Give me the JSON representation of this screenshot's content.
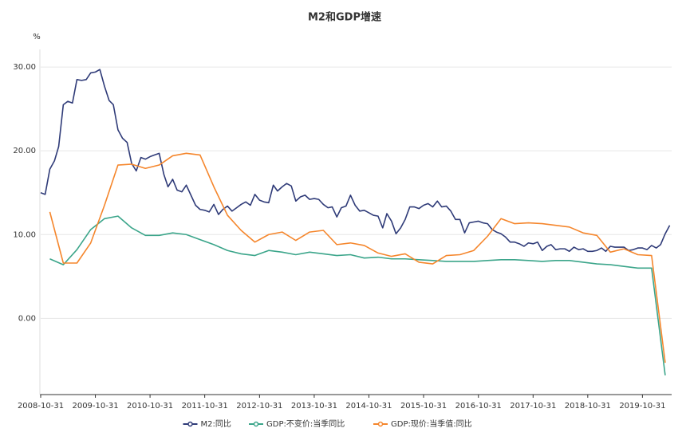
{
  "chart_data": {
    "type": "line",
    "title": "M2和GDP增速",
    "y_unit": "%",
    "ylim": [
      -9.1,
      32.1
    ],
    "yticks": [
      {
        "value": 0,
        "label": "0.00"
      },
      {
        "value": 10,
        "label": "10.00"
      },
      {
        "value": 20,
        "label": "20.00"
      },
      {
        "value": 30,
        "label": "30.00"
      }
    ],
    "xlim": [
      "2008-10-31",
      "2020-05-13"
    ],
    "xticks": [
      "2008-10-31",
      "2009-10-31",
      "2010-10-31",
      "2011-10-31",
      "2012-10-31",
      "2013-10-31",
      "2014-10-31",
      "2015-10-31",
      "2016-10-31",
      "2017-10-31",
      "2018-10-31",
      "2019-10-31"
    ],
    "grid": true,
    "legend": "bottom",
    "series": [
      {
        "name": "M2:同比",
        "color": "#2f3b78",
        "x": [
          "2008-10-31",
          "2008-11-30",
          "2008-12-31",
          "2009-01-31",
          "2009-02-28",
          "2009-03-31",
          "2009-04-30",
          "2009-05-31",
          "2009-06-30",
          "2009-07-31",
          "2009-08-31",
          "2009-09-30",
          "2009-10-31",
          "2009-11-30",
          "2009-12-31",
          "2010-01-31",
          "2010-02-28",
          "2010-03-31",
          "2010-04-30",
          "2010-05-31",
          "2010-06-30",
          "2010-07-31",
          "2010-08-31",
          "2010-09-30",
          "2010-10-31",
          "2010-11-30",
          "2010-12-31",
          "2011-01-31",
          "2011-02-28",
          "2011-03-31",
          "2011-04-30",
          "2011-05-31",
          "2011-06-30",
          "2011-07-31",
          "2011-08-31",
          "2011-09-30",
          "2011-10-31",
          "2011-11-30",
          "2011-12-31",
          "2012-01-31",
          "2012-02-29",
          "2012-03-31",
          "2012-04-30",
          "2012-05-31",
          "2012-06-30",
          "2012-07-31",
          "2012-08-31",
          "2012-09-30",
          "2012-10-31",
          "2012-11-30",
          "2012-12-31",
          "2013-01-31",
          "2013-02-28",
          "2013-03-31",
          "2013-04-30",
          "2013-05-31",
          "2013-06-30",
          "2013-07-31",
          "2013-08-31",
          "2013-09-30",
          "2013-10-31",
          "2013-11-30",
          "2013-12-31",
          "2014-01-31",
          "2014-02-28",
          "2014-03-31",
          "2014-04-30",
          "2014-05-31",
          "2014-06-30",
          "2014-07-31",
          "2014-08-31",
          "2014-09-30",
          "2014-10-31",
          "2014-11-30",
          "2014-12-31",
          "2015-01-31",
          "2015-02-28",
          "2015-03-31",
          "2015-04-30",
          "2015-05-31",
          "2015-06-30",
          "2015-07-31",
          "2015-08-31",
          "2015-09-30",
          "2015-10-31",
          "2015-11-30",
          "2015-12-31",
          "2016-01-31",
          "2016-02-29",
          "2016-03-31",
          "2016-04-30",
          "2016-05-31",
          "2016-06-30",
          "2016-07-31",
          "2016-08-31",
          "2016-09-30",
          "2016-10-31",
          "2016-11-30",
          "2016-12-31",
          "2017-01-31",
          "2017-02-28",
          "2017-03-31",
          "2017-04-30",
          "2017-05-31",
          "2017-06-30",
          "2017-07-31",
          "2017-08-31",
          "2017-09-30",
          "2017-10-31",
          "2017-11-30",
          "2017-12-31",
          "2018-01-31",
          "2018-02-28",
          "2018-03-31",
          "2018-04-30",
          "2018-05-31",
          "2018-06-30",
          "2018-07-31",
          "2018-08-31",
          "2018-09-30",
          "2018-10-31",
          "2018-11-30",
          "2018-12-31",
          "2019-01-31",
          "2019-02-28",
          "2019-03-31",
          "2019-04-30",
          "2019-05-31",
          "2019-06-30",
          "2019-07-31",
          "2019-08-31",
          "2019-09-30",
          "2019-10-31",
          "2019-11-30",
          "2019-12-31",
          "2020-01-31",
          "2020-02-29",
          "2020-03-31",
          "2020-04-30"
        ],
        "values": [
          15.0,
          14.8,
          17.8,
          18.8,
          20.5,
          25.5,
          25.9,
          25.7,
          28.5,
          28.4,
          28.5,
          29.3,
          29.4,
          29.7,
          27.7,
          26.0,
          25.5,
          22.5,
          21.5,
          21.0,
          18.5,
          17.6,
          19.2,
          19.0,
          19.3,
          19.5,
          19.7,
          17.2,
          15.7,
          16.6,
          15.3,
          15.1,
          15.9,
          14.7,
          13.5,
          13.0,
          12.9,
          12.7,
          13.6,
          12.4,
          13.0,
          13.4,
          12.8,
          13.2,
          13.6,
          13.9,
          13.5,
          14.8,
          14.1,
          13.9,
          13.8,
          15.9,
          15.2,
          15.7,
          16.1,
          15.8,
          14.0,
          14.5,
          14.7,
          14.2,
          14.3,
          14.2,
          13.6,
          13.2,
          13.3,
          12.1,
          13.2,
          13.4,
          14.7,
          13.5,
          12.8,
          12.9,
          12.6,
          12.3,
          12.2,
          10.8,
          12.5,
          11.6,
          10.1,
          10.8,
          11.8,
          13.3,
          13.3,
          13.1,
          13.5,
          13.7,
          13.3,
          14.0,
          13.3,
          13.4,
          12.8,
          11.8,
          11.8,
          10.2,
          11.4,
          11.5,
          11.6,
          11.4,
          11.3,
          10.6,
          10.3,
          10.1,
          9.7,
          9.1,
          9.1,
          8.9,
          8.6,
          9.0,
          8.9,
          9.1,
          8.1,
          8.6,
          8.8,
          8.2,
          8.3,
          8.3,
          8.0,
          8.5,
          8.2,
          8.3,
          8.0,
          8.0,
          8.1,
          8.4,
          8.0,
          8.6,
          8.5,
          8.5,
          8.5,
          8.1,
          8.2,
          8.4,
          8.4,
          8.2,
          8.7,
          8.4,
          8.8,
          10.1,
          11.1
        ]
      },
      {
        "name": "GDP:不变价:当季同比",
        "color": "#3ba58a",
        "x": [
          "2008-12-31",
          "2009-03-31",
          "2009-06-30",
          "2009-09-30",
          "2009-12-31",
          "2010-03-31",
          "2010-06-30",
          "2010-09-30",
          "2010-12-31",
          "2011-03-31",
          "2011-06-30",
          "2011-09-30",
          "2011-12-31",
          "2012-03-31",
          "2012-06-30",
          "2012-09-30",
          "2012-12-31",
          "2013-03-31",
          "2013-06-30",
          "2013-09-30",
          "2013-12-31",
          "2014-03-31",
          "2014-06-30",
          "2014-09-30",
          "2014-12-31",
          "2015-03-31",
          "2015-06-30",
          "2015-09-30",
          "2015-12-31",
          "2016-03-31",
          "2016-06-30",
          "2016-09-30",
          "2016-12-31",
          "2017-03-31",
          "2017-06-30",
          "2017-09-30",
          "2017-12-31",
          "2018-03-31",
          "2018-06-30",
          "2018-09-30",
          "2018-12-31",
          "2019-03-31",
          "2019-06-30",
          "2019-09-30",
          "2019-12-31",
          "2020-03-31"
        ],
        "values": [
          7.1,
          6.4,
          8.2,
          10.6,
          11.9,
          12.2,
          10.8,
          9.9,
          9.9,
          10.2,
          10.0,
          9.4,
          8.8,
          8.1,
          7.7,
          7.5,
          8.1,
          7.9,
          7.6,
          7.9,
          7.7,
          7.5,
          7.6,
          7.2,
          7.3,
          7.1,
          7.1,
          7.0,
          6.9,
          6.8,
          6.8,
          6.8,
          6.9,
          7.0,
          7.0,
          6.9,
          6.8,
          6.9,
          6.9,
          6.7,
          6.5,
          6.4,
          6.2,
          6.0,
          6.0,
          -6.8
        ]
      },
      {
        "name": "GDP:现价:当季值:同比",
        "color": "#f5862c",
        "x": [
          "2008-12-31",
          "2009-03-31",
          "2009-06-30",
          "2009-09-30",
          "2009-12-31",
          "2010-03-31",
          "2010-06-30",
          "2010-09-30",
          "2010-12-31",
          "2011-03-31",
          "2011-06-30",
          "2011-09-30",
          "2011-12-31",
          "2012-03-31",
          "2012-06-30",
          "2012-09-30",
          "2012-12-31",
          "2013-03-31",
          "2013-06-30",
          "2013-09-30",
          "2013-12-31",
          "2014-03-31",
          "2014-06-30",
          "2014-09-30",
          "2014-12-31",
          "2015-03-31",
          "2015-06-30",
          "2015-09-30",
          "2015-12-31",
          "2016-03-31",
          "2016-06-30",
          "2016-09-30",
          "2016-12-31",
          "2017-03-31",
          "2017-06-30",
          "2017-09-30",
          "2017-12-31",
          "2018-03-31",
          "2018-06-30",
          "2018-09-30",
          "2018-12-31",
          "2019-03-31",
          "2019-06-30",
          "2019-09-30",
          "2019-12-31",
          "2020-03-31"
        ],
        "values": [
          12.7,
          6.6,
          6.6,
          9.0,
          13.5,
          18.3,
          18.4,
          17.9,
          18.3,
          19.4,
          19.7,
          19.5,
          15.7,
          12.3,
          10.5,
          9.1,
          10.0,
          10.3,
          9.3,
          10.3,
          10.5,
          8.8,
          9.0,
          8.7,
          7.8,
          7.4,
          7.7,
          6.7,
          6.5,
          7.5,
          7.6,
          8.1,
          9.8,
          11.9,
          11.3,
          11.4,
          11.3,
          11.1,
          10.9,
          10.2,
          9.9,
          7.9,
          8.3,
          7.6,
          7.5,
          -5.3
        ]
      }
    ]
  }
}
